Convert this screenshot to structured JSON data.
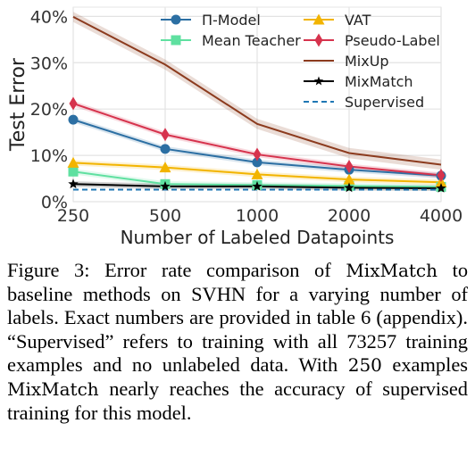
{
  "chart_data": {
    "type": "line",
    "xlabel": "Number of Labeled Datapoints",
    "ylabel": "Test Error",
    "x": [
      250,
      500,
      1000,
      2000,
      4000
    ],
    "x_scale": "log",
    "x_tick_labels": [
      "250",
      "500",
      "1000",
      "2000",
      "4000"
    ],
    "ylim": [
      0,
      42
    ],
    "y_ticks": [
      0,
      10,
      20,
      30,
      40
    ],
    "y_tick_labels": [
      "0%",
      "10%",
      "20%",
      "30%",
      "40%"
    ],
    "grid": true,
    "legend_position": "top-center",
    "series": [
      {
        "name": "Π-Model",
        "values": [
          17.7,
          11.4,
          8.5,
          6.9,
          5.6
        ],
        "color": "#2c6fa3",
        "marker": "circle",
        "dashed": false
      },
      {
        "name": "Mean Teacher",
        "values": [
          6.5,
          3.8,
          3.6,
          3.4,
          3.2
        ],
        "color": "#5fe0a0",
        "marker": "square",
        "dashed": false
      },
      {
        "name": "VAT",
        "values": [
          8.4,
          7.4,
          5.9,
          4.8,
          4.2
        ],
        "color": "#f2b400",
        "marker": "triangle",
        "dashed": false
      },
      {
        "name": "Pseudo-Label",
        "values": [
          21.2,
          14.5,
          10.2,
          7.6,
          5.7
        ],
        "color": "#d6334d",
        "marker": "diamond",
        "dashed": false
      },
      {
        "name": "MixUp",
        "values": [
          39.9,
          29.6,
          16.8,
          10.5,
          8.0
        ],
        "color": "#8c3b1e",
        "marker": "none",
        "dashed": false
      },
      {
        "name": "MixMatch",
        "values": [
          3.8,
          3.3,
          3.3,
          3.0,
          2.9
        ],
        "color": "#000000",
        "marker": "star",
        "dashed": false
      },
      {
        "name": "Supervised",
        "values": [
          2.6,
          2.6,
          2.6,
          2.6,
          2.6
        ],
        "color": "#1f77b4",
        "marker": "none",
        "dashed": true
      }
    ]
  },
  "caption": {
    "label": "Figure 3:",
    "part1": "Error rate comparison of",
    "method": "MixMatch",
    "part2": "to baseline methods on SVHN for a varying number of labels. Exact numbers are provided in table 6 (appendix). “Supervised” refers to training with all 73257 training examples and no unlabeled data. With",
    "count": "250",
    "part3": "examples",
    "method2": "MixMatch",
    "part4": "nearly reaches the accuracy of supervised training for this model."
  }
}
